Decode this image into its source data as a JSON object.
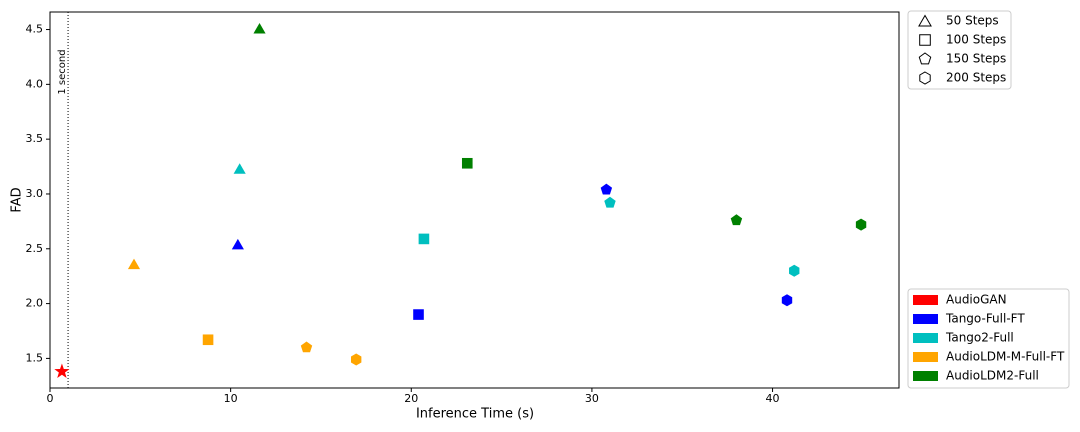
{
  "chart_data": {
    "type": "scatter",
    "x_label": "Inference Time (s)",
    "y_label": "FAD",
    "xlim": [
      0,
      47
    ],
    "ylim": [
      1.23,
      4.66
    ],
    "xticks": [
      0,
      10,
      20,
      30,
      40
    ],
    "yticks": [
      1.5,
      {
        "value": 2,
        "label": "2.0"
      },
      2.5,
      {
        "value": 3,
        "label": "3.0"
      },
      3.5,
      {
        "value": 4,
        "label": "4.0"
      },
      4.5
    ],
    "vline": {
      "x": 1,
      "label": "1 second"
    },
    "marker_legend": [
      {
        "label": "50 Steps",
        "marker": "triangle"
      },
      {
        "label": "100 Steps",
        "marker": "square"
      },
      {
        "label": "150 Steps",
        "marker": "pentagon"
      },
      {
        "label": "200 Steps",
        "marker": "hexagon"
      }
    ],
    "series": [
      {
        "name": "AudioGAN",
        "color": "#ff0000",
        "markers": [
          "star"
        ],
        "x": [
          0.66
        ],
        "values": [
          1.38
        ]
      },
      {
        "name": "Tango-Full-FT",
        "color": "#0000ff",
        "markers": [
          "triangle",
          "square",
          "pentagon",
          "hexagon"
        ],
        "x": [
          10.4,
          20.4,
          30.8,
          40.8
        ],
        "values": [
          2.54,
          1.9,
          3.04,
          2.03
        ]
      },
      {
        "name": "Tango2-Full",
        "color": "#00bfbf",
        "markers": [
          "triangle",
          "square",
          "pentagon",
          "hexagon"
        ],
        "x": [
          10.5,
          20.7,
          31.0,
          41.2
        ],
        "values": [
          3.23,
          2.59,
          2.92,
          2.3
        ]
      },
      {
        "name": "AudioLDM-M-Full-FT",
        "color": "#ffa500",
        "markers": [
          "triangle",
          "square",
          "pentagon",
          "hexagon"
        ],
        "x": [
          4.65,
          8.75,
          14.2,
          16.95
        ],
        "values": [
          2.36,
          1.67,
          1.6,
          1.49
        ]
      },
      {
        "name": "AudioLDM2-Full",
        "color": "#008000",
        "markers": [
          "triangle",
          "square",
          "pentagon",
          "hexagon"
        ],
        "x": [
          11.6,
          23.1,
          38.0,
          44.9
        ],
        "values": [
          4.51,
          3.28,
          2.76,
          2.72
        ]
      }
    ]
  }
}
